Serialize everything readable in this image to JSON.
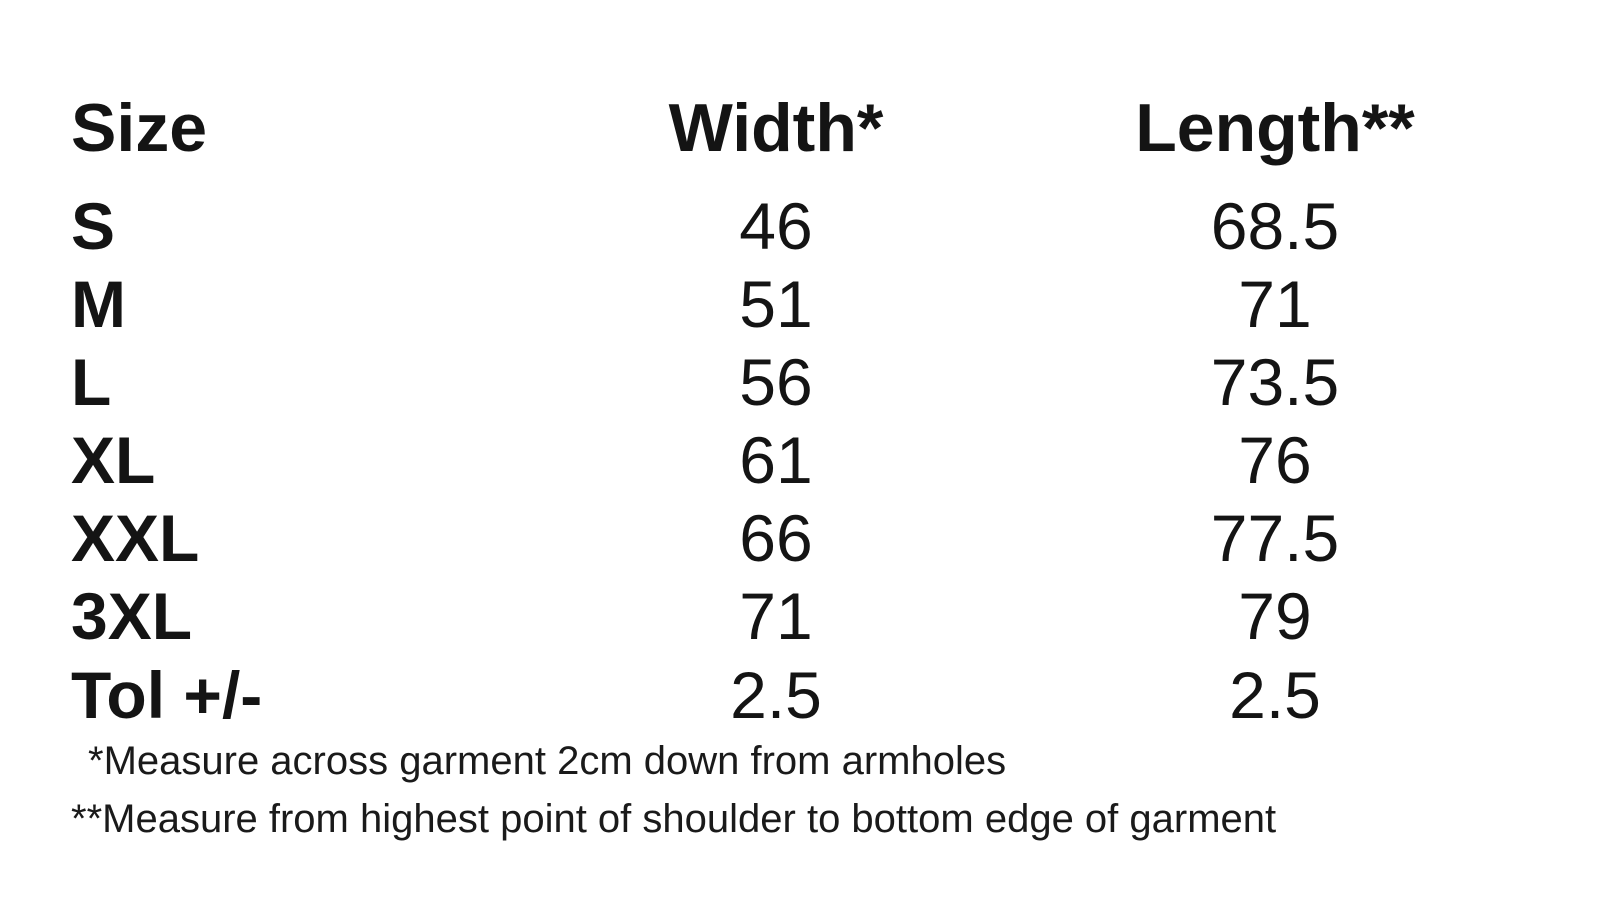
{
  "table": {
    "headers": {
      "size": "Size",
      "width": "Width*",
      "length": "Length**"
    },
    "rows": [
      {
        "size": "S",
        "width": "46",
        "length": "68.5"
      },
      {
        "size": "M",
        "width": "51",
        "length": "71"
      },
      {
        "size": "L",
        "width": "56",
        "length": "73.5"
      },
      {
        "size": "XL",
        "width": "61",
        "length": "76"
      },
      {
        "size": "XXL",
        "width": "66",
        "length": "77.5"
      },
      {
        "size": "3XL",
        "width": "71",
        "length": "79"
      },
      {
        "size": "Tol +/-",
        "width": "2.5",
        "length": "2.5"
      }
    ]
  },
  "notes": {
    "width_note": "*Measure across garment 2cm down from armholes",
    "length_note": "**Measure from highest point of shoulder to bottom edge of garment"
  }
}
